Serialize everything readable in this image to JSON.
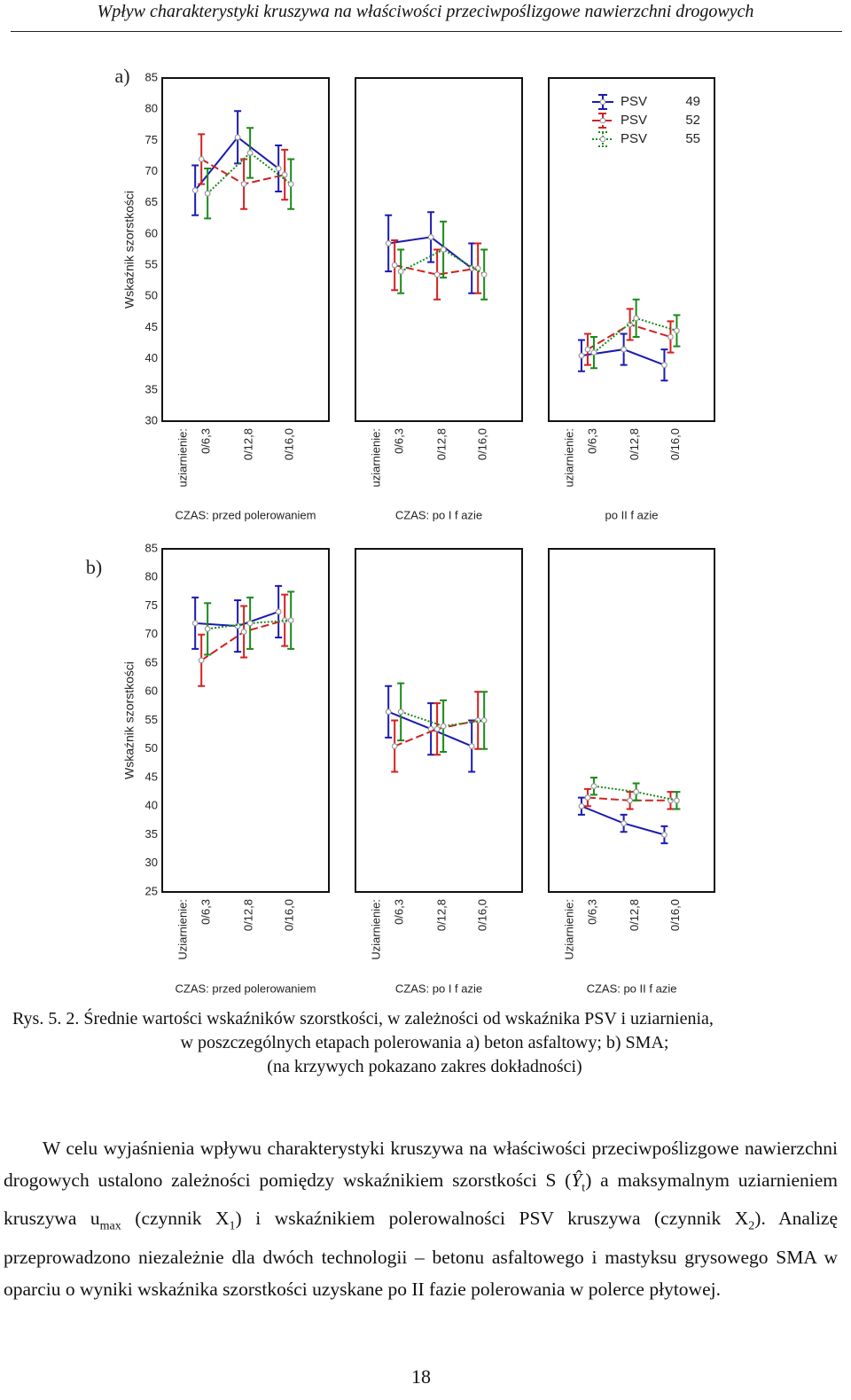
{
  "header": {
    "title": "Wpływ charakterystyki kruszywa na właściwości przeciwpoślizgowe nawierzchni drogowych"
  },
  "chart_data": [
    {
      "type": "line",
      "label": "a)",
      "ylabel": "Wskaźnik szorstkości",
      "ylim": [
        30,
        85
      ],
      "yticks": [
        30,
        35,
        40,
        45,
        50,
        55,
        60,
        65,
        70,
        75,
        80,
        85
      ],
      "series": [
        {
          "name": "PSV",
          "label": "49",
          "color": "#1a1ab4",
          "line_style": "solid"
        },
        {
          "name": "PSV",
          "label": "52",
          "color": "#d42020",
          "line_style": "dashed"
        },
        {
          "name": "PSV",
          "label": "55",
          "color": "#1a8a1a",
          "line_style": "dotted"
        }
      ],
      "panels": [
        {
          "title": "CZAS: przed polerowaniem",
          "x_label": "uziarnienie:",
          "categories": [
            "0/6,3",
            "0/12,8",
            "0/16,0"
          ],
          "series": [
            {
              "values": [
                67,
                75.5,
                70.5
              ],
              "errors": [
                4,
                4.2,
                3.7
              ]
            },
            {
              "values": [
                72,
                68,
                69.5
              ],
              "errors": [
                4,
                4,
                4
              ]
            },
            {
              "values": [
                66.5,
                73,
                68
              ],
              "errors": [
                4,
                4,
                4
              ]
            }
          ]
        },
        {
          "title": "CZAS: po I f azie",
          "x_label": "uziarnienie:",
          "categories": [
            "0/6,3",
            "0/12,8",
            "0/16,0"
          ],
          "series": [
            {
              "values": [
                58.5,
                59.5,
                54.5
              ],
              "errors": [
                4.5,
                4,
                4
              ]
            },
            {
              "values": [
                55,
                53.5,
                54.5
              ],
              "errors": [
                4,
                4,
                4
              ]
            },
            {
              "values": [
                54,
                57.5,
                53.5
              ],
              "errors": [
                3.5,
                4.5,
                4
              ]
            }
          ]
        },
        {
          "title": "po II f azie",
          "x_label": "uziarnienie:",
          "categories": [
            "0/6,3",
            "0/12,8",
            "0/16,0"
          ],
          "series": [
            {
              "values": [
                40.5,
                41.5,
                39
              ],
              "errors": [
                2.5,
                2.5,
                2.5
              ]
            },
            {
              "values": [
                41.5,
                45.5,
                43.5
              ],
              "errors": [
                2.5,
                2.5,
                2.5
              ]
            },
            {
              "values": [
                41,
                46.5,
                44.5
              ],
              "errors": [
                2.5,
                3,
                2.5
              ]
            }
          ]
        }
      ]
    },
    {
      "type": "line",
      "label": "b)",
      "ylabel": "Wskaźnik szorstkości",
      "ylim": [
        25,
        85
      ],
      "yticks": [
        25,
        30,
        35,
        40,
        45,
        50,
        55,
        60,
        65,
        70,
        75,
        80,
        85
      ],
      "series": [
        {
          "color": "#1a1ab4",
          "line_style": "solid"
        },
        {
          "color": "#d42020",
          "line_style": "dashed"
        },
        {
          "color": "#1a8a1a",
          "line_style": "dotted"
        }
      ],
      "panels": [
        {
          "title": "CZAS: przed polerowaniem",
          "x_label": "Uziarnienie:",
          "categories": [
            "0/6,3",
            "0/12,8",
            "0/16,0"
          ],
          "series": [
            {
              "values": [
                72,
                71.5,
                74
              ],
              "errors": [
                4.5,
                4.5,
                4.5
              ]
            },
            {
              "values": [
                65.5,
                70.5,
                72.5
              ],
              "errors": [
                4.5,
                4.5,
                4.5
              ]
            },
            {
              "values": [
                71,
                72,
                72.5
              ],
              "errors": [
                4.5,
                4.5,
                5
              ]
            }
          ]
        },
        {
          "title": "CZAS: po I f azie",
          "x_label": "Uziarnienie:",
          "categories": [
            "0/6,3",
            "0/12,8",
            "0/16,0"
          ],
          "series": [
            {
              "values": [
                56.5,
                53.5,
                50.5
              ],
              "errors": [
                4.5,
                4.5,
                4.5
              ]
            },
            {
              "values": [
                50.5,
                53.5,
                55
              ],
              "errors": [
                4.5,
                4.5,
                5
              ]
            },
            {
              "values": [
                56.5,
                54,
                55
              ],
              "errors": [
                5,
                4.5,
                5
              ]
            }
          ]
        },
        {
          "title": "CZAS: po II f azie",
          "x_label": "Uziarnienie:",
          "categories": [
            "0/6,3",
            "0/12,8",
            "0/16,0"
          ],
          "series": [
            {
              "values": [
                40,
                37,
                35
              ],
              "errors": [
                1.5,
                1.5,
                1.5
              ]
            },
            {
              "values": [
                41.5,
                41,
                41
              ],
              "errors": [
                1.5,
                1.5,
                1.5
              ]
            },
            {
              "values": [
                43.5,
                42.5,
                41
              ],
              "errors": [
                1.5,
                1.5,
                1.5
              ]
            }
          ]
        }
      ]
    }
  ],
  "caption": [
    "Rys.  5. 2. Średnie wartości wskaźników szorstkości, w zależności od wskaźnika PSV i uziarnienia,",
    "w poszczególnych etapach polerowania a) beton asfaltowy; b) SMA;",
    "(na krzywych pokazano zakres dokładności)"
  ],
  "paragraph": [
    "W celu wyjaśnienia wpływu charakterystyki kruszywa na właściwości przeciwpoślizgowe nawierzchni drogowych ustalono zależności pomiędzy wskaźnikiem szorstkości S (",
    "Ŷ",
    "t",
    ") a maksymalnym uziarnieniem kruszywa u",
    "max",
    " (czynnik X",
    "1",
    ") i wskaźnikiem polerowalności PSV kruszywa (czynnik X",
    "2",
    "). Analizę przeprowadzono niezależnie dla dwóch technologii – betonu asfaltowego i mastyksu grysowego SMA w oparciu o wyniki wskaźnika szorstkości uzyskane po II fazie polerowania w polerce płytowej."
  ],
  "page_number": "18"
}
